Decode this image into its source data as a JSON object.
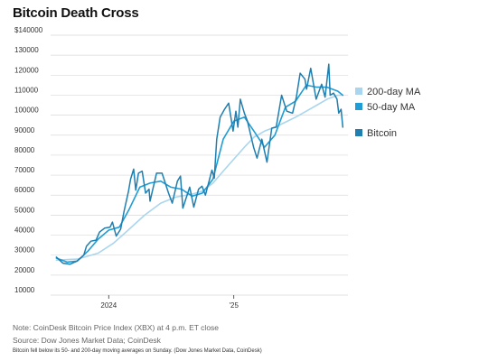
{
  "title": "Bitcoin Death Cross",
  "note": "Note: CoinDesk Bitcoin Price Index (XBX) at 4 p.m. ET close",
  "source": "Source: Dow Jones Market Data; CoinDesk",
  "caption": "Bitcoin fell below its 50- and 200-day moving averages on Sunday. (Dow Jones Market Data, CoinDesk)",
  "colors": {
    "bitcoin": "#1e7fb0",
    "ma50": "#1f9dd6",
    "ma200": "#a9d6ee",
    "grid": "#d9d9d9"
  },
  "chart_data": {
    "type": "line",
    "title": "Bitcoin Death Cross",
    "xlabel": "",
    "ylabel": "",
    "x_tick_labels": [
      {
        "label": "2024",
        "x": "2024-01-01"
      },
      {
        "label": "'25",
        "x": "2025-01-01"
      }
    ],
    "xlim": [
      "2023-07-15",
      "2025-12-01"
    ],
    "y_tick_labels": [
      "$140000",
      "130000",
      "120000",
      "110000",
      "100000",
      "90000",
      "80000",
      "70000",
      "60000",
      "50000",
      "40000",
      "30000",
      "20000",
      "10000"
    ],
    "y_ticks": [
      140000,
      130000,
      120000,
      110000,
      100000,
      90000,
      80000,
      70000,
      60000,
      50000,
      40000,
      30000,
      20000,
      10000
    ],
    "ylim": [
      10000,
      140000
    ],
    "grid": true,
    "legend_position": "right",
    "series": [
      {
        "name": "200-day MA",
        "color": "#a9d6ee",
        "points": [
          [
            "2023-08-01",
            27500
          ],
          [
            "2023-10-01",
            28000
          ],
          [
            "2023-12-01",
            31000
          ],
          [
            "2024-01-15",
            36000
          ],
          [
            "2024-03-01",
            43000
          ],
          [
            "2024-04-15",
            50000
          ],
          [
            "2024-06-01",
            56000
          ],
          [
            "2024-07-15",
            59000
          ],
          [
            "2024-09-01",
            60500
          ],
          [
            "2024-10-01",
            62000
          ],
          [
            "2024-11-01",
            66000
          ],
          [
            "2024-12-01",
            72000
          ],
          [
            "2025-01-01",
            78000
          ],
          [
            "2025-02-01",
            84000
          ],
          [
            "2025-03-01",
            89000
          ],
          [
            "2025-04-01",
            92000
          ],
          [
            "2025-05-01",
            94000
          ],
          [
            "2025-06-01",
            96500
          ],
          [
            "2025-07-01",
            99000
          ],
          [
            "2025-08-01",
            102000
          ],
          [
            "2025-09-01",
            105000
          ],
          [
            "2025-10-01",
            108000
          ],
          [
            "2025-11-01",
            110000
          ],
          [
            "2025-11-16",
            110000
          ]
        ]
      },
      {
        "name": "50-day MA",
        "color": "#1f9dd6",
        "points": [
          [
            "2023-08-01",
            28500
          ],
          [
            "2023-09-01",
            26500
          ],
          [
            "2023-10-01",
            27000
          ],
          [
            "2023-11-01",
            32000
          ],
          [
            "2023-12-01",
            38000
          ],
          [
            "2024-01-01",
            42500
          ],
          [
            "2024-02-01",
            44000
          ],
          [
            "2024-03-01",
            53000
          ],
          [
            "2024-04-01",
            64000
          ],
          [
            "2024-05-01",
            66000
          ],
          [
            "2024-06-01",
            67000
          ],
          [
            "2024-07-01",
            64000
          ],
          [
            "2024-08-01",
            63000
          ],
          [
            "2024-09-01",
            59500
          ],
          [
            "2024-10-01",
            61000
          ],
          [
            "2024-11-01",
            68000
          ],
          [
            "2024-12-01",
            88000
          ],
          [
            "2025-01-01",
            97000
          ],
          [
            "2025-02-01",
            99000
          ],
          [
            "2025-03-01",
            92000
          ],
          [
            "2025-04-01",
            84000
          ],
          [
            "2025-05-01",
            90000
          ],
          [
            "2025-06-01",
            104000
          ],
          [
            "2025-07-01",
            107000
          ],
          [
            "2025-08-01",
            115000
          ],
          [
            "2025-09-01",
            114000
          ],
          [
            "2025-10-01",
            114000
          ],
          [
            "2025-11-01",
            112000
          ],
          [
            "2025-11-16",
            110000
          ]
        ]
      },
      {
        "name": "Bitcoin",
        "color": "#1e7fb0",
        "points": [
          [
            "2023-08-01",
            29000
          ],
          [
            "2023-08-20",
            26000
          ],
          [
            "2023-09-10",
            25500
          ],
          [
            "2023-09-30",
            27000
          ],
          [
            "2023-10-20",
            30000
          ],
          [
            "2023-10-28",
            34500
          ],
          [
            "2023-11-10",
            37000
          ],
          [
            "2023-11-25",
            37500
          ],
          [
            "2023-12-05",
            41500
          ],
          [
            "2023-12-20",
            43500
          ],
          [
            "2024-01-05",
            44000
          ],
          [
            "2024-01-12",
            46500
          ],
          [
            "2024-01-23",
            39500
          ],
          [
            "2024-02-05",
            43000
          ],
          [
            "2024-02-15",
            52000
          ],
          [
            "2024-02-28",
            62000
          ],
          [
            "2024-03-05",
            68000
          ],
          [
            "2024-03-14",
            73000
          ],
          [
            "2024-03-20",
            62500
          ],
          [
            "2024-03-28",
            71000
          ],
          [
            "2024-04-08",
            72000
          ],
          [
            "2024-04-18",
            61000
          ],
          [
            "2024-04-28",
            63000
          ],
          [
            "2024-05-01",
            57000
          ],
          [
            "2024-05-20",
            71000
          ],
          [
            "2024-06-05",
            71000
          ],
          [
            "2024-06-24",
            61000
          ],
          [
            "2024-07-05",
            56000
          ],
          [
            "2024-07-20",
            67000
          ],
          [
            "2024-07-29",
            69500
          ],
          [
            "2024-08-05",
            53500
          ],
          [
            "2024-08-25",
            64000
          ],
          [
            "2024-09-06",
            54000
          ],
          [
            "2024-09-20",
            63000
          ],
          [
            "2024-09-30",
            64500
          ],
          [
            "2024-10-10",
            60000
          ],
          [
            "2024-10-29",
            72500
          ],
          [
            "2024-11-05",
            68500
          ],
          [
            "2024-11-12",
            88000
          ],
          [
            "2024-11-22",
            99000
          ],
          [
            "2024-12-05",
            103000
          ],
          [
            "2024-12-17",
            106000
          ],
          [
            "2024-12-30",
            92000
          ],
          [
            "2025-01-07",
            102000
          ],
          [
            "2025-01-13",
            94000
          ],
          [
            "2025-01-20",
            108000
          ],
          [
            "2025-02-01",
            101000
          ],
          [
            "2025-02-10",
            97000
          ],
          [
            "2025-02-28",
            84000
          ],
          [
            "2025-03-10",
            78500
          ],
          [
            "2025-03-24",
            88000
          ],
          [
            "2025-04-08",
            76500
          ],
          [
            "2025-04-22",
            93500
          ],
          [
            "2025-05-05",
            94000
          ],
          [
            "2025-05-21",
            110000
          ],
          [
            "2025-06-05",
            102000
          ],
          [
            "2025-06-22",
            101000
          ],
          [
            "2025-07-03",
            109000
          ],
          [
            "2025-07-14",
            121000
          ],
          [
            "2025-07-28",
            118000
          ],
          [
            "2025-08-02",
            113000
          ],
          [
            "2025-08-14",
            123500
          ],
          [
            "2025-08-30",
            108000
          ],
          [
            "2025-09-15",
            115500
          ],
          [
            "2025-09-25",
            109000
          ],
          [
            "2025-10-06",
            125500
          ],
          [
            "2025-10-10",
            110000
          ],
          [
            "2025-10-20",
            111000
          ],
          [
            "2025-10-30",
            108000
          ],
          [
            "2025-11-04",
            101000
          ],
          [
            "2025-11-11",
            103000
          ],
          [
            "2025-11-16",
            94000
          ]
        ]
      }
    ]
  }
}
